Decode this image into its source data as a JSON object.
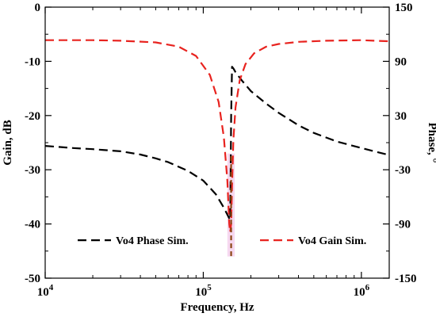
{
  "chart_data": {
    "type": "line",
    "title": "",
    "xlabel": "Frequency, Hz",
    "ylabel_left": "Gain, dB",
    "ylabel_right": "Phase, °",
    "x_scale": "log",
    "xlim": [
      10000,
      1500000
    ],
    "ylim_left": [
      -50,
      0
    ],
    "ylim_right": [
      -150,
      150
    ],
    "x_ticks": [
      {
        "value": 10000,
        "base": "10",
        "exp": "4"
      },
      {
        "value": 100000,
        "base": "10",
        "exp": "5"
      },
      {
        "value": 1000000,
        "base": "10",
        "exp": "6"
      }
    ],
    "y_ticks_left": [
      "0",
      "-10",
      "-20",
      "-30",
      "-40",
      "-50"
    ],
    "y_tick_values_left": [
      0,
      -10,
      -20,
      -30,
      -40,
      -50
    ],
    "y_ticks_right": [
      "150",
      "90",
      "30",
      "-30",
      "-90",
      "-150"
    ],
    "y_tick_values_right": [
      150,
      90,
      30,
      -30,
      -90,
      -150
    ],
    "grid": false,
    "legend": [
      {
        "label": "Vo4 Phase Sim.",
        "color": "#000000",
        "style": "dashed"
      },
      {
        "label": "Vo4 Gain Sim.",
        "color": "#e8231f",
        "style": "dashed"
      }
    ],
    "series": [
      {
        "name": "Vo4 Phase Sim.",
        "axis": "left",
        "color": "#000000",
        "x": [
          10000,
          15000,
          20000,
          30000,
          40000,
          50000,
          60000,
          80000,
          100000,
          120000,
          135000,
          145000,
          148000,
          150000,
          152000,
          155000,
          160000,
          175000,
          200000,
          250000,
          300000,
          400000,
          500000,
          700000,
          1000000,
          1500000
        ],
        "y": [
          -25.6,
          -26.0,
          -26.2,
          -26.6,
          -27.2,
          -27.9,
          -28.6,
          -30.2,
          -32.0,
          -34.5,
          -37.0,
          -38.8,
          -39.3,
          -20.0,
          -11.0,
          -11.3,
          -12.0,
          -13.5,
          -15.5,
          -17.8,
          -19.5,
          -21.8,
          -23.2,
          -24.8,
          -26.0,
          -27.3
        ]
      },
      {
        "name": "Vo4 Gain Sim.",
        "axis": "left",
        "color": "#e8231f",
        "x": [
          10000,
          20000,
          30000,
          50000,
          70000,
          90000,
          110000,
          125000,
          135000,
          142000,
          146000,
          148000,
          150000,
          152000,
          155000,
          160000,
          170000,
          185000,
          210000,
          250000,
          300000,
          400000,
          600000,
          1000000,
          1500000
        ],
        "y": [
          -6.1,
          -6.1,
          -6.2,
          -6.5,
          -7.3,
          -9.0,
          -12.5,
          -17.5,
          -24.0,
          -32.0,
          -40.0,
          -41.5,
          -40.0,
          -33.0,
          -24.5,
          -18.5,
          -13.5,
          -10.5,
          -8.5,
          -7.3,
          -6.8,
          -6.4,
          -6.2,
          -6.1,
          -6.3
        ]
      }
    ]
  },
  "colors": {
    "axis": "#000000",
    "phase_line": "#000000",
    "gain_line": "#e8231f",
    "resonance_marker": "#8b4513",
    "resonance_shade": "#f6d8f0"
  }
}
